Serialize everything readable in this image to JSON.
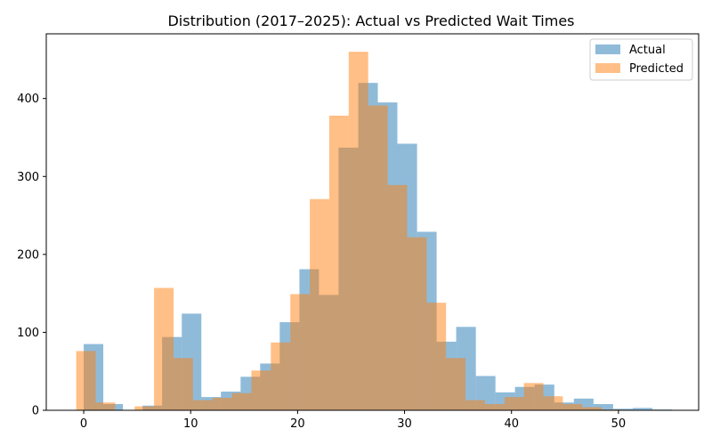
{
  "chart_data": {
    "type": "bar",
    "title": "Distribution (2017–2025): Actual vs Predicted Wait Times",
    "xlabel": "",
    "ylabel": "",
    "xlim": [
      -3.5,
      57.5
    ],
    "ylim": [
      0,
      483
    ],
    "xticks": [
      0,
      10,
      20,
      30,
      40,
      50
    ],
    "yticks": [
      0,
      100,
      200,
      300,
      400
    ],
    "grid": false,
    "legend_position": "top-right",
    "series": [
      {
        "name": "Actual",
        "color": "#1f77b4",
        "opacity": 0.5,
        "bin_edges": [
          0,
          1.83,
          3.67,
          5.5,
          7.33,
          9.17,
          11,
          12.83,
          14.67,
          16.5,
          18.33,
          20.17,
          22,
          23.83,
          25.67,
          27.5,
          29.33,
          31.17,
          33,
          34.83,
          36.67,
          38.5,
          40.33,
          42.17,
          44,
          45.83,
          47.67,
          49.5,
          51.33,
          53.17,
          55
        ],
        "values": [
          85,
          8,
          0,
          6,
          94,
          124,
          17,
          24,
          43,
          60,
          113,
          181,
          148,
          337,
          420,
          395,
          342,
          229,
          88,
          107,
          44,
          23,
          30,
          33,
          10,
          15,
          8,
          2,
          3,
          1
        ]
      },
      {
        "name": "Predicted",
        "color": "#ff7f0e",
        "opacity": 0.5,
        "bin_edges": [
          -0.7,
          1.12,
          2.94,
          4.76,
          6.58,
          8.4,
          10.22,
          12.04,
          13.86,
          15.68,
          17.5,
          19.32,
          21.14,
          22.96,
          24.78,
          26.6,
          28.42,
          30.24,
          32.06,
          33.88,
          35.7,
          37.52,
          39.34,
          41.16,
          42.98,
          44.8,
          46.62,
          48.44,
          50.26,
          52.08,
          53.9
        ],
        "values": [
          76,
          10,
          0,
          5,
          157,
          67,
          13,
          16,
          22,
          51,
          87,
          149,
          271,
          378,
          460,
          391,
          289,
          222,
          138,
          67,
          13,
          8,
          17,
          35,
          18,
          8,
          4,
          1,
          0,
          0
        ]
      }
    ]
  }
}
